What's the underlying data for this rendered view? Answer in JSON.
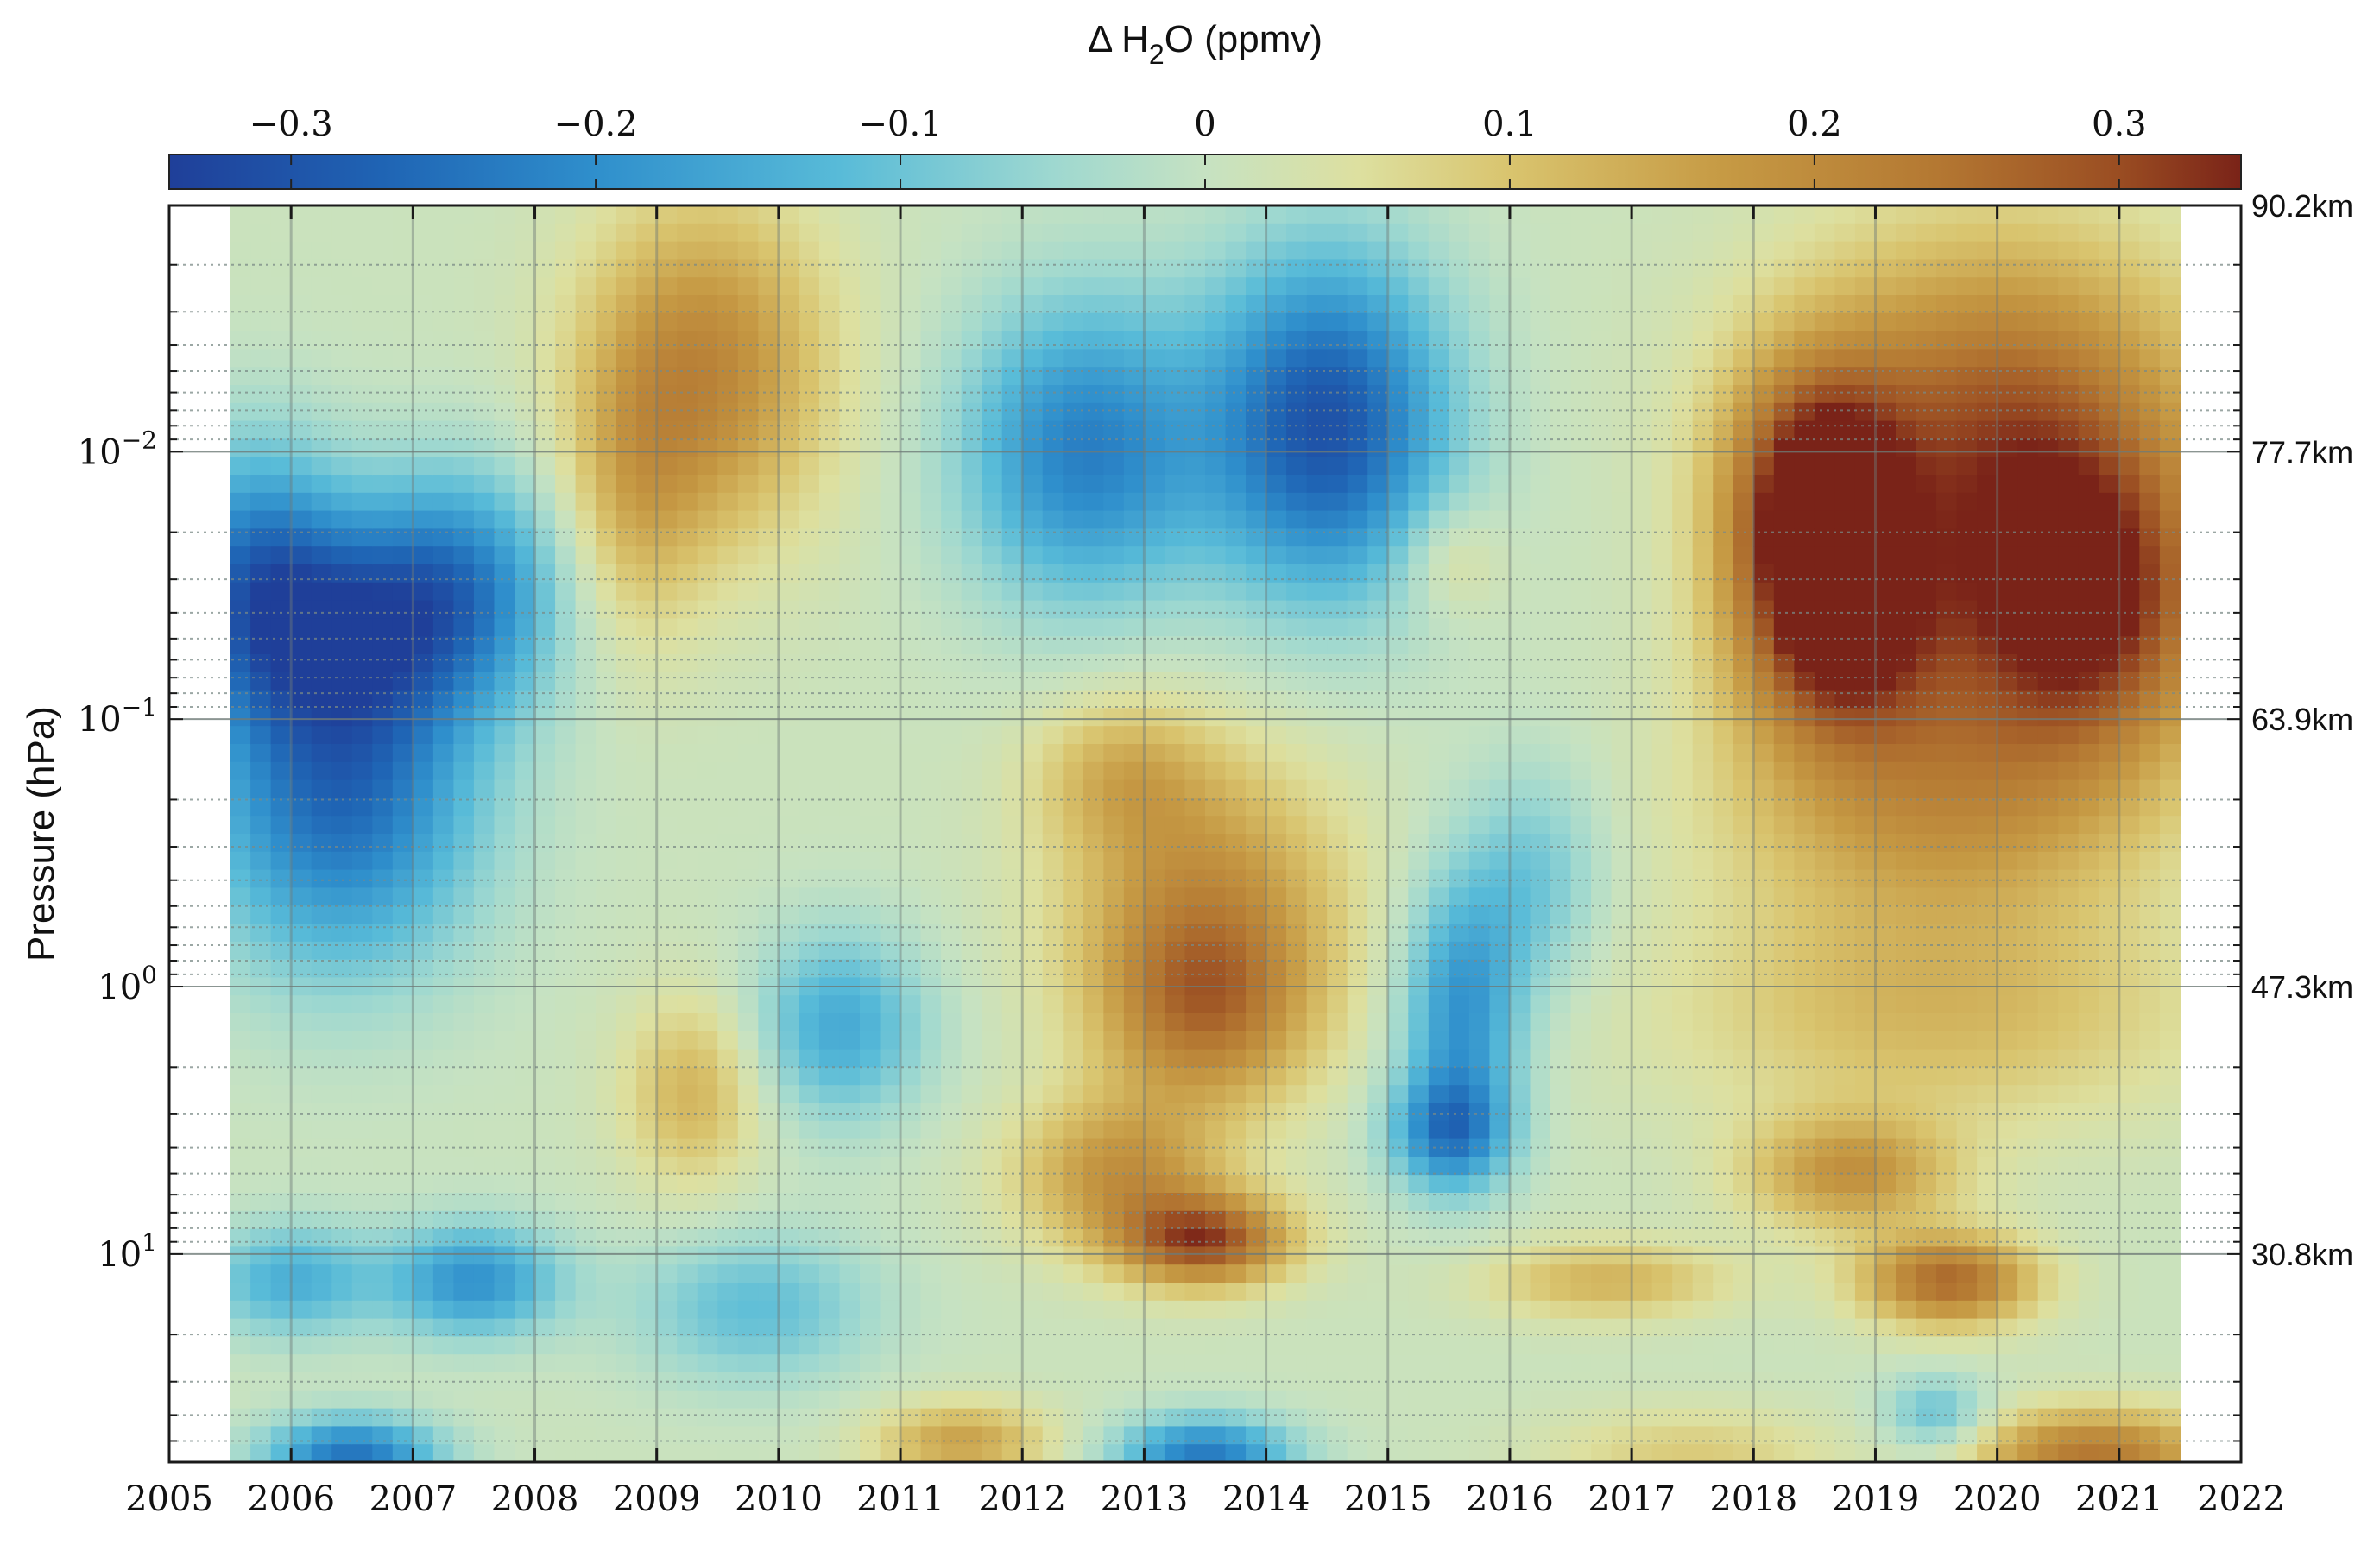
{
  "chart_data": {
    "type": "heatmap",
    "title": "",
    "colorbar": {
      "label_prefix": "Δ H",
      "label_subscript": "2",
      "label_suffix": "O (ppmv)",
      "range": [
        -0.34,
        0.34
      ],
      "ticks": [
        {
          "value": -0.3,
          "label": "−0.3"
        },
        {
          "value": -0.2,
          "label": "−0.2"
        },
        {
          "value": -0.1,
          "label": "−0.1"
        },
        {
          "value": 0,
          "label": "0"
        },
        {
          "value": 0.1,
          "label": "0.1"
        },
        {
          "value": 0.2,
          "label": "0.2"
        },
        {
          "value": 0.3,
          "label": "0.3"
        }
      ],
      "colormap": [
        {
          "v": -0.34,
          "color": "#1f3f99"
        },
        {
          "v": -0.27,
          "color": "#1f64b4"
        },
        {
          "v": -0.2,
          "color": "#2f8fcc"
        },
        {
          "v": -0.12,
          "color": "#58bbd8"
        },
        {
          "v": -0.05,
          "color": "#9ed8d0"
        },
        {
          "v": 0.0,
          "color": "#c6e2c2"
        },
        {
          "v": 0.05,
          "color": "#dde0a0"
        },
        {
          "v": 0.1,
          "color": "#d9c46e"
        },
        {
          "v": 0.17,
          "color": "#c69a44"
        },
        {
          "v": 0.24,
          "color": "#b47832"
        },
        {
          "v": 0.3,
          "color": "#9a4d22"
        },
        {
          "v": 0.34,
          "color": "#7a2318"
        }
      ]
    },
    "x_axis": {
      "range": [
        2005,
        2022
      ],
      "ticks": [
        "2005",
        "2006",
        "2007",
        "2008",
        "2009",
        "2010",
        "2011",
        "2012",
        "2013",
        "2014",
        "2015",
        "2016",
        "2017",
        "2018",
        "2019",
        "2020",
        "2021",
        "2022"
      ],
      "data_range": [
        2005.5,
        2021.5
      ]
    },
    "y_axis": {
      "label": "Pressure (hPa)",
      "scale": "log",
      "inverted": true,
      "range_hPa": [
        0.0012,
        60
      ],
      "major_ticks": [
        {
          "value": 0.01,
          "base": "10",
          "exp": "−2"
        },
        {
          "value": 0.1,
          "base": "10",
          "exp": "−1"
        },
        {
          "value": 1,
          "base": "10",
          "exp": "0"
        },
        {
          "value": 10,
          "base": "10",
          "exp": "1"
        }
      ],
      "pressure_levels_hPa": [
        0.002,
        0.003,
        0.004,
        0.005,
        0.006,
        0.007,
        0.008,
        0.009,
        0.02,
        0.03,
        0.04,
        0.05,
        0.06,
        0.07,
        0.08,
        0.09,
        0.2,
        0.3,
        0.4,
        0.5,
        0.6,
        0.7,
        0.8,
        0.9,
        2,
        3,
        4,
        5,
        6,
        7,
        8,
        9,
        20,
        30,
        40,
        50,
        60
      ]
    },
    "y2_axis": {
      "labels": [
        {
          "value": 0.0012,
          "label": "90.2km"
        },
        {
          "value": 0.01,
          "label": "77.7km"
        },
        {
          "value": 0.1,
          "label": "63.9km"
        },
        {
          "value": 1,
          "label": "47.3km"
        },
        {
          "value": 10,
          "label": "30.8km"
        }
      ]
    },
    "anomaly_features": [
      {
        "year": 2006.4,
        "log_p": -0.7,
        "value": -0.26,
        "sx": 0.8,
        "sy": 0.45
      },
      {
        "year": 2006.5,
        "log_p": -1.35,
        "value": -0.22,
        "sx": 0.9,
        "sy": 0.3
      },
      {
        "year": 2005.7,
        "log_p": -1.6,
        "value": -0.17,
        "sx": 0.5,
        "sy": 0.35
      },
      {
        "year": 2007.4,
        "log_p": -1.55,
        "value": -0.15,
        "sx": 0.6,
        "sy": 0.3
      },
      {
        "year": 2006.5,
        "log_p": 1.75,
        "value": -0.25,
        "sx": 0.5,
        "sy": 0.1
      },
      {
        "year": 2007.5,
        "log_p": 1.1,
        "value": -0.2,
        "sx": 0.5,
        "sy": 0.15
      },
      {
        "year": 2006.0,
        "log_p": 1.1,
        "value": -0.15,
        "sx": 0.5,
        "sy": 0.15
      },
      {
        "year": 2009.4,
        "log_p": -2.3,
        "value": 0.2,
        "sx": 0.7,
        "sy": 0.45
      },
      {
        "year": 2008.8,
        "log_p": -1.8,
        "value": 0.09,
        "sx": 0.4,
        "sy": 0.4
      },
      {
        "year": 2009.3,
        "log_p": 0.4,
        "value": 0.12,
        "sx": 0.4,
        "sy": 0.25
      },
      {
        "year": 2010.5,
        "log_p": 0.15,
        "value": -0.16,
        "sx": 0.5,
        "sy": 0.25
      },
      {
        "year": 2009.8,
        "log_p": 1.2,
        "value": -0.12,
        "sx": 0.7,
        "sy": 0.2
      },
      {
        "year": 2012.5,
        "log_p": -2.0,
        "value": -0.23,
        "sx": 0.7,
        "sy": 0.4
      },
      {
        "year": 2014.5,
        "log_p": -2.1,
        "value": -0.31,
        "sx": 0.7,
        "sy": 0.45
      },
      {
        "year": 2015.5,
        "log_p": -1.6,
        "value": 0.07,
        "sx": 0.3,
        "sy": 0.15
      },
      {
        "year": 2013.5,
        "log_p": -0.3,
        "value": 0.18,
        "sx": 0.8,
        "sy": 0.4
      },
      {
        "year": 2012.8,
        "log_p": -0.8,
        "value": 0.1,
        "sx": 0.5,
        "sy": 0.2
      },
      {
        "year": 2013.5,
        "log_p": 0.1,
        "value": 0.16,
        "sx": 0.6,
        "sy": 0.25
      },
      {
        "year": 2012.8,
        "log_p": 0.7,
        "value": 0.17,
        "sx": 0.6,
        "sy": 0.2
      },
      {
        "year": 2013.5,
        "log_p": 0.95,
        "value": 0.28,
        "sx": 0.5,
        "sy": 0.12
      },
      {
        "year": 2011.5,
        "log_p": 1.7,
        "value": 0.15,
        "sx": 0.5,
        "sy": 0.1
      },
      {
        "year": 2013.5,
        "log_p": 1.75,
        "value": -0.24,
        "sx": 0.5,
        "sy": 0.1
      },
      {
        "year": 2015.6,
        "log_p": 0.1,
        "value": -0.2,
        "sx": 0.35,
        "sy": 0.35
      },
      {
        "year": 2015.5,
        "log_p": 0.55,
        "value": -0.2,
        "sx": 0.35,
        "sy": 0.15
      },
      {
        "year": 2016.2,
        "log_p": -0.4,
        "value": -0.1,
        "sx": 0.4,
        "sy": 0.3
      },
      {
        "year": 2018.5,
        "log_p": -1.8,
        "value": 0.33,
        "sx": 0.5,
        "sy": 0.35
      },
      {
        "year": 2020.0,
        "log_p": -2.1,
        "value": 0.26,
        "sx": 1.2,
        "sy": 0.5
      },
      {
        "year": 2020.7,
        "log_p": -1.4,
        "value": 0.3,
        "sx": 0.8,
        "sy": 0.4
      },
      {
        "year": 2018.7,
        "log_p": -1.3,
        "value": 0.24,
        "sx": 0.6,
        "sy": 0.3
      },
      {
        "year": 2019.5,
        "log_p": -0.7,
        "value": 0.17,
        "sx": 1.2,
        "sy": 0.35
      },
      {
        "year": 2019.5,
        "log_p": 0.1,
        "value": 0.11,
        "sx": 1.5,
        "sy": 0.3
      },
      {
        "year": 2018.8,
        "log_p": 0.7,
        "value": 0.17,
        "sx": 0.6,
        "sy": 0.15
      },
      {
        "year": 2019.6,
        "log_p": 1.1,
        "value": 0.25,
        "sx": 0.5,
        "sy": 0.12
      },
      {
        "year": 2019.5,
        "log_p": 1.6,
        "value": -0.12,
        "sx": 0.3,
        "sy": 0.1
      },
      {
        "year": 2020.8,
        "log_p": 1.75,
        "value": 0.23,
        "sx": 0.7,
        "sy": 0.12
      },
      {
        "year": 2016.8,
        "log_p": 1.1,
        "value": 0.12,
        "sx": 0.7,
        "sy": 0.1
      },
      {
        "year": 2017.5,
        "log_p": 1.75,
        "value": 0.08,
        "sx": 0.8,
        "sy": 0.12
      }
    ]
  }
}
